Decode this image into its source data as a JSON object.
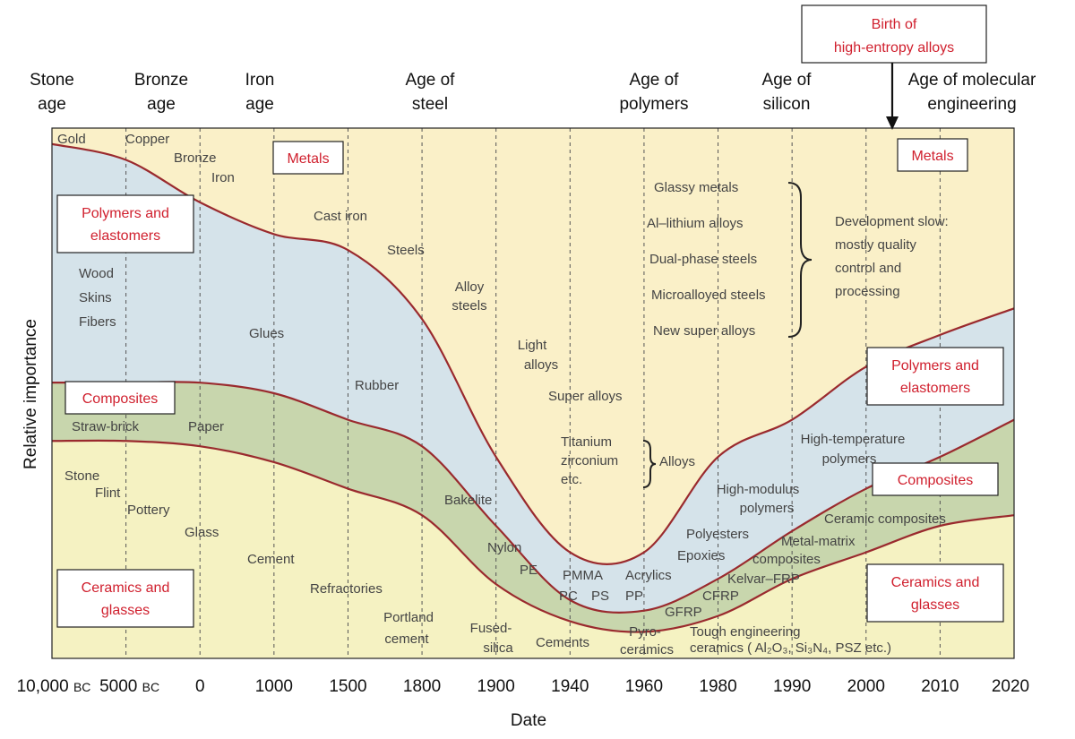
{
  "chart_data": {
    "type": "area",
    "title": "",
    "xlabel": "Date",
    "ylabel": "Relative importance",
    "x_ticks": [
      "10,000 BC",
      "5000 BC",
      "0",
      "1000",
      "1500",
      "1800",
      "1900",
      "1940",
      "1960",
      "1980",
      "1990",
      "2000",
      "2010",
      "2020"
    ],
    "gridlines": "vertical dashed at tick positions",
    "ages": [
      {
        "lines": [
          "Stone",
          "age"
        ]
      },
      {
        "lines": [
          "Bronze",
          "age"
        ]
      },
      {
        "lines": [
          "Iron",
          "age"
        ]
      },
      {
        "lines": [
          "Age of",
          "steel"
        ]
      },
      {
        "lines": [
          "Age of",
          "polymers"
        ]
      },
      {
        "lines": [
          "Age of",
          "silicon"
        ]
      },
      {
        "lines": [
          "Age of molecular",
          "engineering"
        ]
      }
    ],
    "callout": {
      "lines": [
        "Birth of",
        "high-entropy alloys"
      ],
      "at": "2004"
    },
    "series_boundaries": [
      {
        "name": "metals",
        "x": [
          "10,000 BC",
          "5000 BC",
          "0",
          "1000",
          "1500",
          "1800",
          "1900",
          "1940",
          "1960",
          "1980",
          "1990",
          "2000",
          "2010",
          "2020"
        ],
        "y": [
          0.97,
          0.94,
          0.86,
          0.8,
          0.77,
          0.64,
          0.38,
          0.2,
          0.2,
          0.38,
          0.45,
          0.55,
          0.61,
          0.66
        ]
      },
      {
        "name": "polymers",
        "x": [
          "10,000 BC",
          "5000 BC",
          "0",
          "1000",
          "1500",
          "1800",
          "1900",
          "1940",
          "1960",
          "1980",
          "1990",
          "2000",
          "2010",
          "2020"
        ],
        "y": [
          0.52,
          0.52,
          0.52,
          0.5,
          0.45,
          0.4,
          0.25,
          0.11,
          0.09,
          0.15,
          0.24,
          0.32,
          0.38,
          0.45
        ]
      },
      {
        "name": "composites",
        "x": [
          "10,000 BC",
          "5000 BC",
          "0",
          "1000",
          "1500",
          "1800",
          "1900",
          "1940",
          "1960",
          "1980",
          "1990",
          "2000",
          "2010",
          "2020"
        ],
        "y": [
          0.41,
          0.41,
          0.4,
          0.37,
          0.32,
          0.27,
          0.14,
          0.07,
          0.05,
          0.08,
          0.15,
          0.2,
          0.25,
          0.27
        ]
      }
    ],
    "category_boxes": {
      "metals_left": "Metals",
      "metals_right": "Metals",
      "polymers_left": [
        "Polymers and",
        "elastomers"
      ],
      "polymers_right": [
        "Polymers and",
        "elastomers"
      ],
      "composites_left": "Composites",
      "composites_right": "Composites",
      "ceramics_left": [
        "Ceramics and",
        "glasses"
      ],
      "ceramics_right": [
        "Ceramics and",
        "glasses"
      ]
    },
    "annotations": {
      "gold": "Gold",
      "copper": "Copper",
      "bronze": "Bronze",
      "iron": "Iron",
      "cast_iron": "Cast iron",
      "steels": "Steels",
      "alloy_steels": [
        "Alloy",
        "steels"
      ],
      "light_alloys": [
        "Light",
        "alloys"
      ],
      "super_alloys": "Super alloys",
      "titanium": [
        "Titanium",
        "zirconium",
        "etc."
      ],
      "alloys": "Alloys",
      "glassy_metals": "Glassy metals",
      "al_lithium": "Al–lithium alloys",
      "dual_phase": "Dual-phase steels",
      "microalloyed": "Microalloyed steels",
      "new_super": "New super alloys",
      "dev_slow": [
        "Development slow:",
        "mostly quality",
        "control and",
        "processing"
      ],
      "wood": "Wood",
      "skins": "Skins",
      "fibers": "Fibers",
      "glues": "Glues",
      "rubber": "Rubber",
      "bakelite": "Bakelite",
      "nylon": "Nylon",
      "pe": "PE",
      "pmma": "PMMA",
      "pc": "PC",
      "ps": "PS",
      "acrylics": "Acrylics",
      "pp": "PP",
      "epoxies": "Epoxies",
      "polyesters": "Polyesters",
      "high_modulus": [
        "High-modulus",
        "polymers"
      ],
      "high_temp": [
        "High-temperature",
        "polymers"
      ],
      "straw_brick": "Straw-brick",
      "paper": "Paper",
      "ceramic_composites": "Ceramic composites",
      "metal_matrix": [
        "Metal-matrix",
        "composites"
      ],
      "kevlar": "Kelvar–FRP",
      "cfrp": "CFRP",
      "gfrp": "GFRP",
      "stone": "Stone",
      "flint": "Flint",
      "pottery": "Pottery",
      "glass": "Glass",
      "cement": "Cement",
      "refractories": "Refractories",
      "portland": [
        "Portland",
        "cement"
      ],
      "fused_silica": [
        "Fused-",
        "silica"
      ],
      "cements": "Cements",
      "pyro_ceramics": [
        "Pyro-",
        "ceramics"
      ],
      "tough_eng": [
        "Tough engineering",
        "ceramics ( Al₂O₃, Si₃N₄, PSZ etc.)"
      ]
    },
    "colors": {
      "metals": "#faf0c8",
      "polymers": "#d5e3ea",
      "composites": "#c8d6ad",
      "ceramics": "#f5f2c2",
      "boundary": "#9a2a2e",
      "category_text": "#d0202e"
    }
  }
}
